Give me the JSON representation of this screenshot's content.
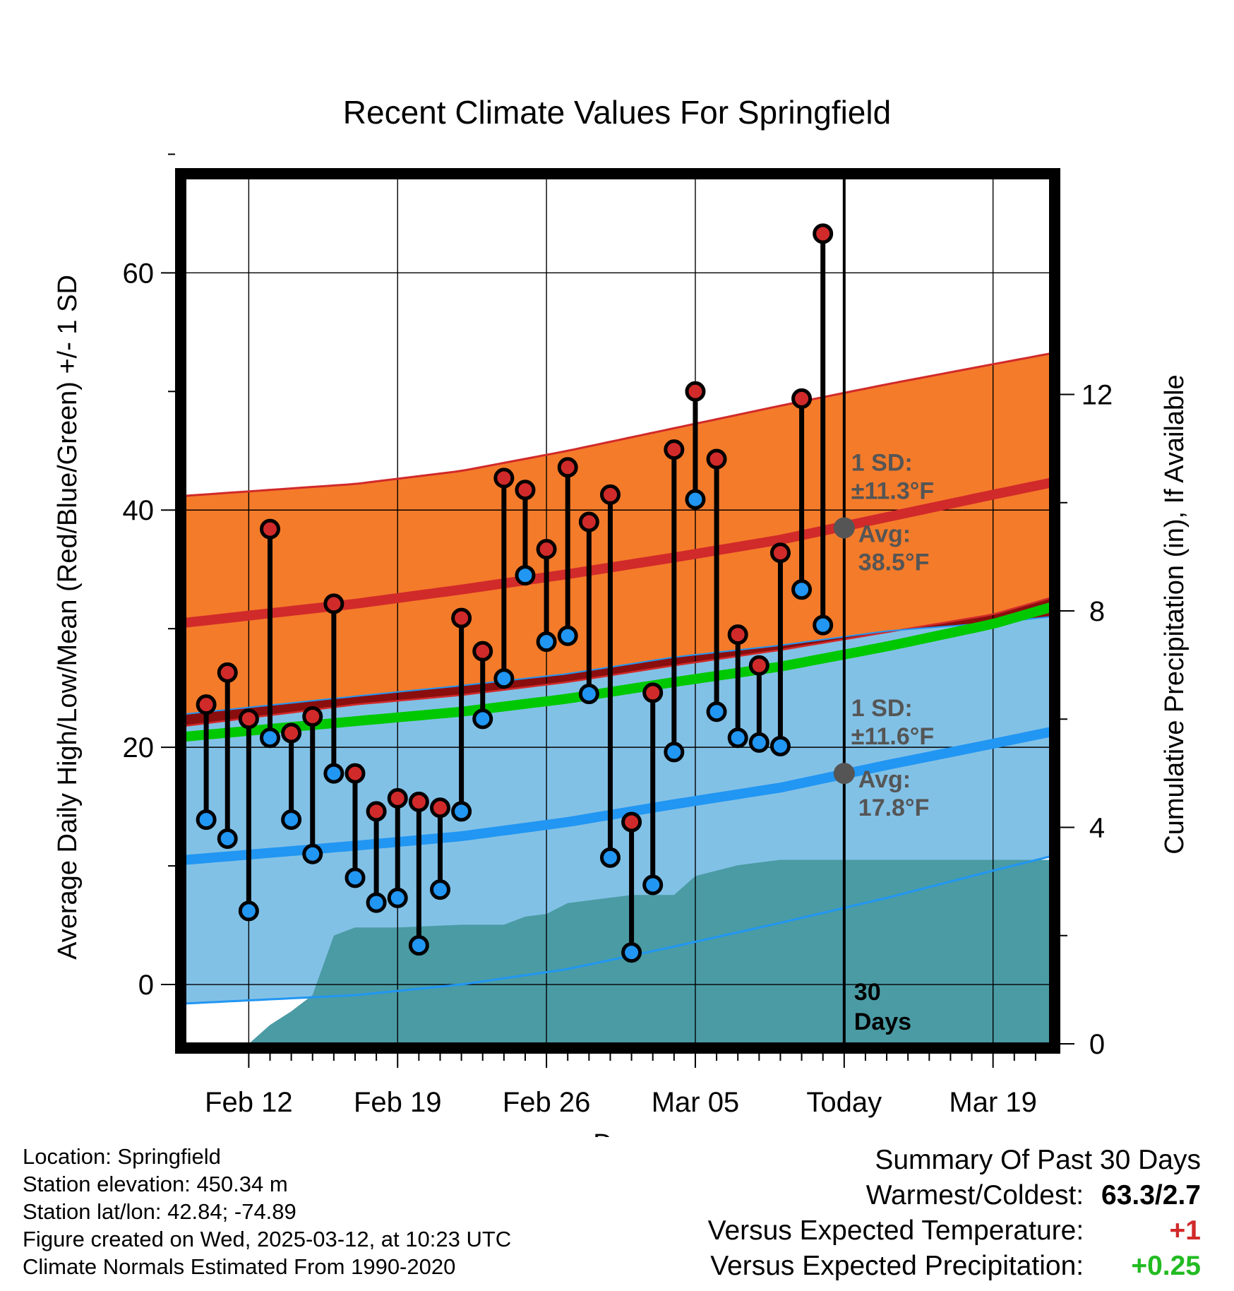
{
  "chart_data": {
    "type": "line",
    "title": "Recent Climate Values For Springfield",
    "xlabel": "Day",
    "ylabel": "Average Daily High/Low/Mean (Red/Blue/Green) +/- 1 SD",
    "y2label": "Cumulative Precipitation (in), If Available",
    "x_ticks": [
      "Feb 12",
      "Feb 19",
      "Feb 26",
      "Mar 05",
      "Today",
      "Mar 19"
    ],
    "x_tick_day": [
      0,
      7,
      14,
      21,
      28,
      35
    ],
    "x_range_day": [
      -3.0,
      37.7
    ],
    "ylim": [
      -5.0,
      68.0
    ],
    "yticks": [
      0,
      20,
      40,
      60
    ],
    "y2lim": [
      0,
      16.0
    ],
    "y2ticks": [
      0,
      4,
      8,
      12
    ],
    "grid": true,
    "today_day": 28,
    "today_label": [
      "30",
      "Days"
    ],
    "observed": {
      "day": [
        -2,
        -1,
        0,
        1,
        2,
        3,
        4,
        5,
        6,
        7,
        8,
        9,
        10,
        11,
        12,
        13,
        14,
        15,
        16,
        17,
        18,
        19,
        20,
        21,
        22,
        23,
        24,
        25,
        26,
        27
      ],
      "high": [
        23.6,
        26.3,
        22.4,
        38.4,
        21.2,
        22.6,
        32.1,
        17.8,
        14.6,
        15.7,
        15.4,
        14.9,
        30.9,
        28.1,
        42.7,
        41.7,
        36.7,
        43.6,
        39.0,
        41.3,
        13.7,
        24.6,
        45.1,
        50.0,
        44.3,
        29.5,
        26.9,
        36.4,
        49.4,
        63.3
      ],
      "low": [
        13.9,
        12.3,
        6.2,
        20.8,
        13.9,
        11.0,
        17.8,
        9.0,
        6.9,
        7.3,
        3.3,
        8.0,
        14.6,
        22.4,
        25.8,
        34.5,
        28.9,
        29.4,
        24.5,
        10.7,
        2.7,
        8.4,
        19.6,
        40.9,
        23.0,
        20.8,
        20.4,
        20.1,
        33.3,
        30.3
      ],
      "high_color": "#d12a2a",
      "low_color": "#2196f3"
    },
    "normals": {
      "day": [
        -3,
        5,
        10,
        15,
        20,
        25,
        30,
        35,
        37.7
      ],
      "high_avg": [
        30.5,
        32.1,
        33.3,
        34.6,
        36.0,
        37.5,
        39.4,
        41.3,
        42.3
      ],
      "high_upper": [
        41.2,
        42.2,
        43.3,
        45.0,
        46.9,
        48.8,
        50.6,
        52.3,
        53.2
      ],
      "high_lower": [
        21.8,
        23.6,
        24.4,
        25.5,
        26.9,
        28.2,
        29.7,
        31.2,
        32.6
      ],
      "low_avg": [
        10.5,
        11.7,
        12.5,
        13.7,
        15.2,
        16.6,
        18.5,
        20.3,
        21.3
      ],
      "low_upper": [
        22.8,
        24.3,
        25.2,
        26.2,
        27.6,
        28.6,
        29.8,
        30.5,
        31.0
      ],
      "low_lower": [
        -1.6,
        -0.9,
        0.0,
        1.3,
        3.2,
        5.2,
        7.3,
        9.6,
        10.8
      ],
      "mean_avg": [
        20.9,
        22.2,
        23.0,
        24.1,
        25.5,
        26.8,
        28.5,
        30.4,
        31.8
      ],
      "high_band_color": "#f47b2a",
      "low_band_color": "#82c1e6",
      "overlap_color": "#8b0e0e",
      "high_line_color": "#d12a2a",
      "low_line_color": "#2196f3",
      "mean_line_color": "#00c800"
    },
    "precip": {
      "day": [
        -3,
        0,
        1,
        2,
        3,
        4,
        5,
        6,
        7,
        10,
        12,
        13,
        14,
        15,
        16,
        18,
        19,
        20,
        21,
        22,
        23,
        24,
        25,
        26,
        27,
        28,
        37.7
      ],
      "cumulative": [
        0,
        0,
        0.35,
        0.6,
        0.9,
        2.0,
        2.15,
        2.15,
        2.15,
        2.2,
        2.2,
        2.35,
        2.4,
        2.6,
        2.65,
        2.75,
        2.75,
        2.75,
        3.1,
        3.2,
        3.3,
        3.35,
        3.4,
        3.4,
        3.4,
        3.4,
        3.4
      ],
      "color": "#4a9ba4"
    },
    "annotations": {
      "high_sd": [
        "1 SD:",
        "±11.3°F"
      ],
      "high_avg": [
        "Avg:",
        "38.5°F"
      ],
      "high_avg_value": 38.5,
      "low_sd": [
        "1 SD:",
        "±11.6°F"
      ],
      "low_avg": [
        "Avg:",
        "17.8°F"
      ],
      "low_avg_value": 17.8,
      "color": "#555555"
    }
  },
  "info": {
    "location": "Location: Springfield",
    "elevation": "Station elevation: 450.34 m",
    "latlon": "Station lat/lon: 42.84; -74.89",
    "created": "Figure created on Wed, 2025-03-12, at 10:23 UTC",
    "normals": "Climate Normals Estimated From 1990-2020"
  },
  "summary": {
    "header": "Summary Of Past 30 Days",
    "warmest_label": "Warmest/Coldest:",
    "warmest_value": "63.3/2.7",
    "temp_label": "Versus Expected Temperature:",
    "temp_value": "+1",
    "temp_color": "#d12a2a",
    "precip_label": "Versus Expected Precipitation:",
    "precip_value": "+0.25",
    "precip_color": "#22bb22"
  }
}
